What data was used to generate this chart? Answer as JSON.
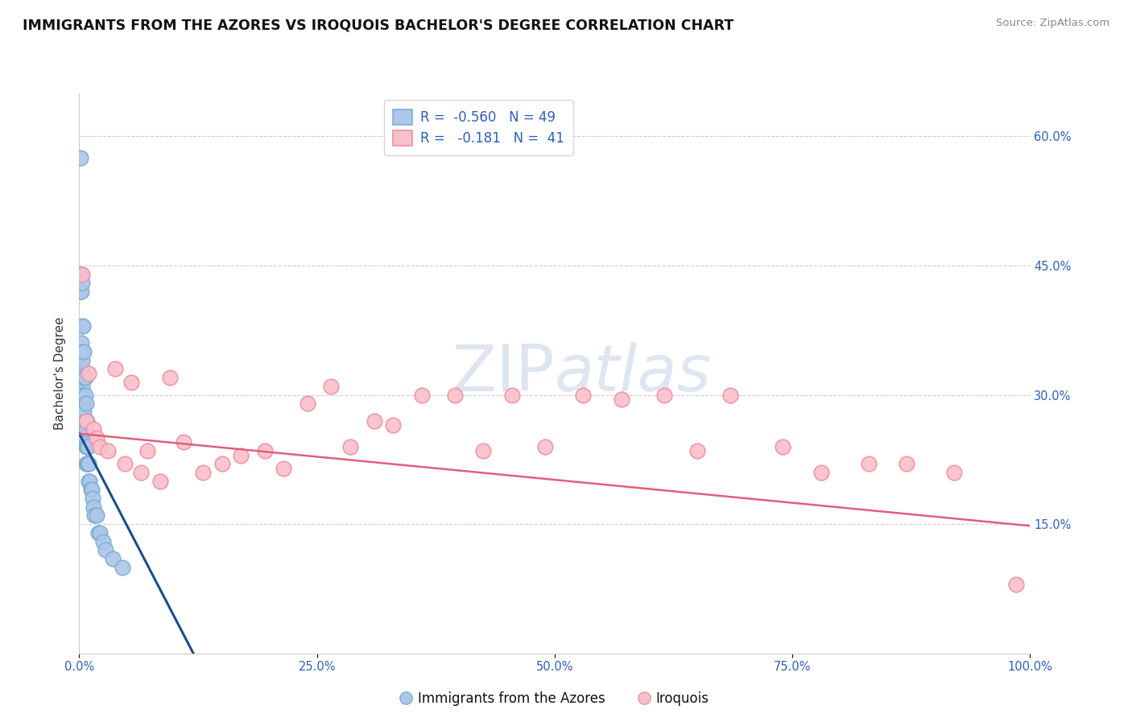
{
  "title": "IMMIGRANTS FROM THE AZORES VS IROQUOIS BACHELOR'S DEGREE CORRELATION CHART",
  "source": "Source: ZipAtlas.com",
  "ylabel": "Bachelor's Degree",
  "watermark": "ZIPatlas",
  "xlim": [
    0.0,
    1.0
  ],
  "ylim": [
    0.0,
    0.65
  ],
  "ytick_positions": [
    0.15,
    0.3,
    0.45,
    0.6
  ],
  "ytick_labels": [
    "15.0%",
    "30.0%",
    "45.0%",
    "60.0%"
  ],
  "xtick_positions": [
    0.0,
    0.25,
    0.5,
    0.75,
    1.0
  ],
  "xtick_labels": [
    "0.0%",
    "25.0%",
    "50.0%",
    "75.0%",
    "100.0%"
  ],
  "blue_face": "#aec6e8",
  "blue_edge": "#7bafd4",
  "pink_face": "#f9c0cb",
  "pink_edge": "#f090a0",
  "trend_blue_color": "#1a4e8c",
  "trend_pink_color": "#e0607a",
  "R_blue": -0.56,
  "N_blue": 49,
  "R_pink": -0.181,
  "N_pink": 41,
  "blue_x": [
    0.001,
    0.001,
    0.001,
    0.002,
    0.002,
    0.002,
    0.002,
    0.003,
    0.003,
    0.003,
    0.003,
    0.003,
    0.004,
    0.004,
    0.004,
    0.004,
    0.005,
    0.005,
    0.005,
    0.005,
    0.005,
    0.006,
    0.006,
    0.006,
    0.006,
    0.007,
    0.007,
    0.007,
    0.007,
    0.008,
    0.008,
    0.008,
    0.009,
    0.009,
    0.01,
    0.01,
    0.011,
    0.012,
    0.013,
    0.014,
    0.015,
    0.016,
    0.018,
    0.02,
    0.022,
    0.025,
    0.028,
    0.035,
    0.045
  ],
  "blue_y": [
    0.575,
    0.44,
    0.42,
    0.44,
    0.42,
    0.36,
    0.33,
    0.43,
    0.38,
    0.34,
    0.31,
    0.3,
    0.38,
    0.35,
    0.32,
    0.29,
    0.35,
    0.32,
    0.28,
    0.26,
    0.25,
    0.32,
    0.3,
    0.27,
    0.25,
    0.29,
    0.26,
    0.24,
    0.22,
    0.27,
    0.24,
    0.22,
    0.24,
    0.22,
    0.22,
    0.2,
    0.2,
    0.19,
    0.19,
    0.18,
    0.17,
    0.16,
    0.16,
    0.14,
    0.14,
    0.13,
    0.12,
    0.11,
    0.1
  ],
  "pink_x": [
    0.003,
    0.007,
    0.01,
    0.015,
    0.018,
    0.022,
    0.03,
    0.038,
    0.048,
    0.055,
    0.065,
    0.072,
    0.085,
    0.095,
    0.11,
    0.13,
    0.15,
    0.17,
    0.195,
    0.215,
    0.24,
    0.265,
    0.285,
    0.31,
    0.33,
    0.36,
    0.395,
    0.425,
    0.455,
    0.49,
    0.53,
    0.57,
    0.615,
    0.65,
    0.685,
    0.74,
    0.78,
    0.83,
    0.87,
    0.92,
    0.985
  ],
  "pink_y": [
    0.44,
    0.27,
    0.325,
    0.26,
    0.25,
    0.24,
    0.235,
    0.33,
    0.22,
    0.315,
    0.21,
    0.235,
    0.2,
    0.32,
    0.245,
    0.21,
    0.22,
    0.23,
    0.235,
    0.215,
    0.29,
    0.31,
    0.24,
    0.27,
    0.265,
    0.3,
    0.3,
    0.235,
    0.3,
    0.24,
    0.3,
    0.295,
    0.3,
    0.235,
    0.3,
    0.24,
    0.21,
    0.22,
    0.22,
    0.21,
    0.08
  ],
  "blue_trend_x": [
    0.0,
    0.12
  ],
  "blue_trend_y": [
    0.255,
    0.0
  ],
  "pink_trend_x": [
    0.0,
    1.0
  ],
  "pink_trend_y": [
    0.255,
    0.148
  ]
}
